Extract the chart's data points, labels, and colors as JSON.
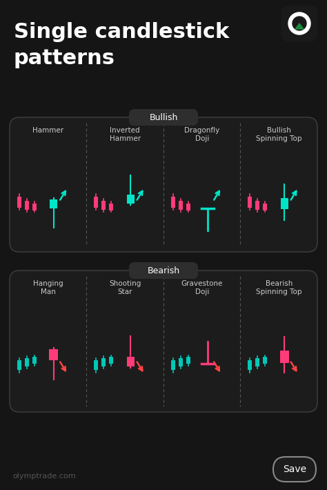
{
  "bg_color": "#151515",
  "panel_color": "#1c1c1c",
  "title_line1": "Single candlestick",
  "title_line2": "patterns",
  "title_color": "#ffffff",
  "title_fontsize": 22,
  "bullish_label": "Bullish",
  "bearish_label": "Bearish",
  "label_bg": "#2a2a2a",
  "label_text_color": "#ffffff",
  "watermark": "olymptrade.com",
  "save_text": "Save",
  "bullish_candle_color": "#00e5c8",
  "bearish_candle_color": "#ff3b7a",
  "prev_candle_color_bull": "#ff3b7a",
  "prev_candle_color_bear": "#00c8b8",
  "arrow_bull_color": "#00e5c8",
  "arrow_bear_color": "#ff4444",
  "dashed_color": "#555555",
  "border_color": "#3a3a3a",
  "bullish_patterns": [
    "Hammer",
    "Inverted\nHammer",
    "Dragonfly\nDoji",
    "Bullish\nSpinning Top"
  ],
  "bearish_patterns": [
    "Hanging\nMan",
    "Shooting\nStar",
    "Gravestone\nDoji",
    "Bearish\nSpinning Top"
  ],
  "pattern_text_color": "#cccccc"
}
